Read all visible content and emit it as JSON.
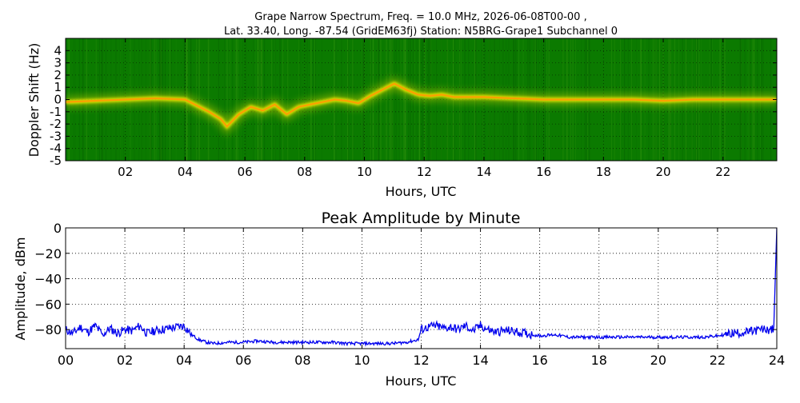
{
  "chart_data": [
    {
      "type": "heatmap",
      "title_line1": "Grape Narrow Spectrum, Freq. = 10.0 MHz, 2026-06-08T00-00 ,",
      "title_line2": "Lat.  33.40, Long. -87.54 (GridEM63fj) Station: N5BRG-Grape1 Subchannel 0",
      "xlabel": "Hours, UTC",
      "ylabel": "Doppler Shift (Hz)",
      "xlim": [
        0,
        23.8
      ],
      "ylim": [
        -5,
        5
      ],
      "xtick_values": [
        2,
        4,
        6,
        8,
        10,
        12,
        14,
        16,
        18,
        20,
        22
      ],
      "xtick_labels": [
        "02",
        "04",
        "06",
        "08",
        "10",
        "12",
        "14",
        "16",
        "18",
        "20",
        "22"
      ],
      "ytick_values": [
        4,
        3,
        2,
        1,
        0,
        -1,
        -2,
        -3,
        -4,
        -5
      ],
      "ytick_labels": [
        "4",
        "3",
        "2",
        "1",
        "0",
        "-1",
        "-2",
        "-3",
        "-4",
        "-5"
      ],
      "background_color": "#0b7a00",
      "trace_colors": [
        "#ffee00",
        "#ff9900",
        "#d8d800"
      ],
      "doppler_trace": {
        "hours": [
          0,
          1,
          2,
          3,
          4,
          4.4,
          4.8,
          5.2,
          5.4,
          5.8,
          6.2,
          6.6,
          7.0,
          7.4,
          7.8,
          8.2,
          8.6,
          9.0,
          9.4,
          9.8,
          10.2,
          10.6,
          11.0,
          11.4,
          11.8,
          12.2,
          12.6,
          13,
          14,
          15,
          16,
          17,
          18,
          19,
          20,
          21,
          22,
          23,
          23.8
        ],
        "shift_hz": [
          -0.2,
          -0.1,
          0.0,
          0.1,
          0.0,
          -0.5,
          -1.0,
          -1.6,
          -2.2,
          -1.2,
          -0.6,
          -0.9,
          -0.4,
          -1.2,
          -0.6,
          -0.4,
          -0.2,
          0.0,
          -0.1,
          -0.3,
          0.3,
          0.8,
          1.3,
          0.8,
          0.4,
          0.3,
          0.4,
          0.2,
          0.2,
          0.1,
          0.0,
          0.0,
          0.0,
          0.0,
          -0.1,
          0.0,
          0.0,
          0.0,
          0.0
        ]
      }
    },
    {
      "type": "line",
      "title": "Peak Amplitude by Minute",
      "xlabel": "Hours, UTC",
      "ylabel": "Amplitude, dBm",
      "xlim": [
        0,
        24
      ],
      "ylim": [
        -95,
        0
      ],
      "grid": true,
      "line_color": "#0000ee",
      "xtick_values": [
        0,
        2,
        4,
        6,
        8,
        10,
        12,
        14,
        16,
        18,
        20,
        22,
        24
      ],
      "xtick_labels": [
        "00",
        "02",
        "04",
        "06",
        "08",
        "10",
        "12",
        "14",
        "16",
        "18",
        "20",
        "22",
        "24"
      ],
      "ytick_values": [
        0,
        -20,
        -40,
        -60,
        -80
      ],
      "ytick_labels": [
        "0",
        "−20",
        "−40",
        "−60",
        "−80"
      ],
      "series": [
        {
          "x": [
            0.0,
            0.25,
            0.5,
            0.75,
            1.0,
            1.25,
            1.5,
            1.75,
            2.0,
            2.25,
            2.5,
            2.75,
            3.0,
            3.25,
            3.5,
            3.75,
            4.0,
            4.25,
            4.5,
            4.75,
            5.0,
            5.5,
            6.0,
            6.5,
            7.0,
            7.5,
            8.0,
            8.5,
            9.0,
            9.5,
            10.0,
            10.5,
            11.0,
            11.5,
            11.9,
            12.0,
            12.25,
            12.5,
            12.75,
            13.0,
            13.25,
            13.5,
            13.75,
            14.0,
            14.25,
            14.5,
            14.75,
            15.0,
            15.5,
            16.0,
            16.5,
            17.0,
            17.5,
            18.0,
            18.5,
            19.0,
            19.5,
            20.0,
            20.5,
            21.0,
            21.5,
            22.0,
            22.5,
            23.0,
            23.5,
            23.9,
            24.0
          ],
          "y": [
            -80,
            -83,
            -78,
            -82,
            -77,
            -84,
            -79,
            -83,
            -80,
            -81,
            -77,
            -83,
            -81,
            -80,
            -79,
            -78,
            -77,
            -84,
            -88,
            -90,
            -91,
            -90,
            -90,
            -89,
            -90,
            -90,
            -90,
            -90,
            -90,
            -91,
            -91,
            -91,
            -91,
            -90,
            -88,
            -80,
            -78,
            -77,
            -79,
            -78,
            -80,
            -77,
            -81,
            -77,
            -80,
            -82,
            -81,
            -81,
            -83,
            -85,
            -84,
            -86,
            -86,
            -86,
            -86,
            -86,
            -86,
            -86,
            -86,
            -86,
            -86,
            -85,
            -83,
            -82,
            -80,
            -80,
            0
          ]
        }
      ]
    }
  ]
}
